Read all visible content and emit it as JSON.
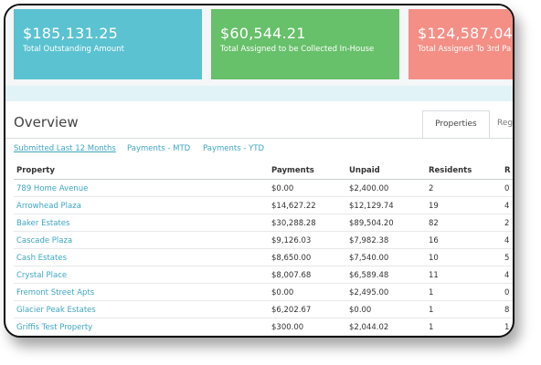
{
  "summary_cards": [
    {
      "amount": "$185,131.25",
      "caption": "Total Outstanding Amount",
      "color": "#5bc2d1"
    },
    {
      "amount": "$60,544.21",
      "caption": "Total Assigned to be Collected In-House",
      "color": "#67c06a"
    },
    {
      "amount": "$124,587.04",
      "caption": "Total Assigned To 3rd Pa",
      "color": "#f48f86"
    }
  ],
  "overview": {
    "title": "Overview",
    "tabs": [
      "Properties",
      "Reg"
    ],
    "active_tab": "Properties",
    "filters": [
      "Submitted Last 12 Months",
      "Payments - MTD",
      "Payments - YTD"
    ],
    "active_filter": "Submitted Last 12 Months"
  },
  "table": {
    "columns": [
      "Property",
      "Payments",
      "Unpaid",
      "Residents",
      "R"
    ],
    "rows": [
      [
        "789 Home Avenue",
        "$0.00",
        "$2,400.00",
        "2",
        "0"
      ],
      [
        "Arrowhead Plaza",
        "$14,627.22",
        "$12,129.74",
        "19",
        "4"
      ],
      [
        "Baker Estates",
        "$30,288.28",
        "$89,504.20",
        "82",
        "2"
      ],
      [
        "Cascade Plaza",
        "$9,126.03",
        "$7,982.38",
        "16",
        "4"
      ],
      [
        "Cash Estates",
        "$8,650.00",
        "$7,540.00",
        "10",
        "5"
      ],
      [
        "Crystal Place",
        "$8,007.68",
        "$6,589.48",
        "11",
        "4"
      ],
      [
        "Fremont Street Apts",
        "$0.00",
        "$2,495.00",
        "1",
        "0"
      ],
      [
        "Glacier Peak Estates",
        "$6,202.67",
        "$0.00",
        "1",
        "8"
      ],
      [
        "Griffis Test Property",
        "$300.00",
        "$2,044.02",
        "1",
        "1"
      ]
    ]
  },
  "colors": {
    "accent_link": "#3ea6c4"
  }
}
